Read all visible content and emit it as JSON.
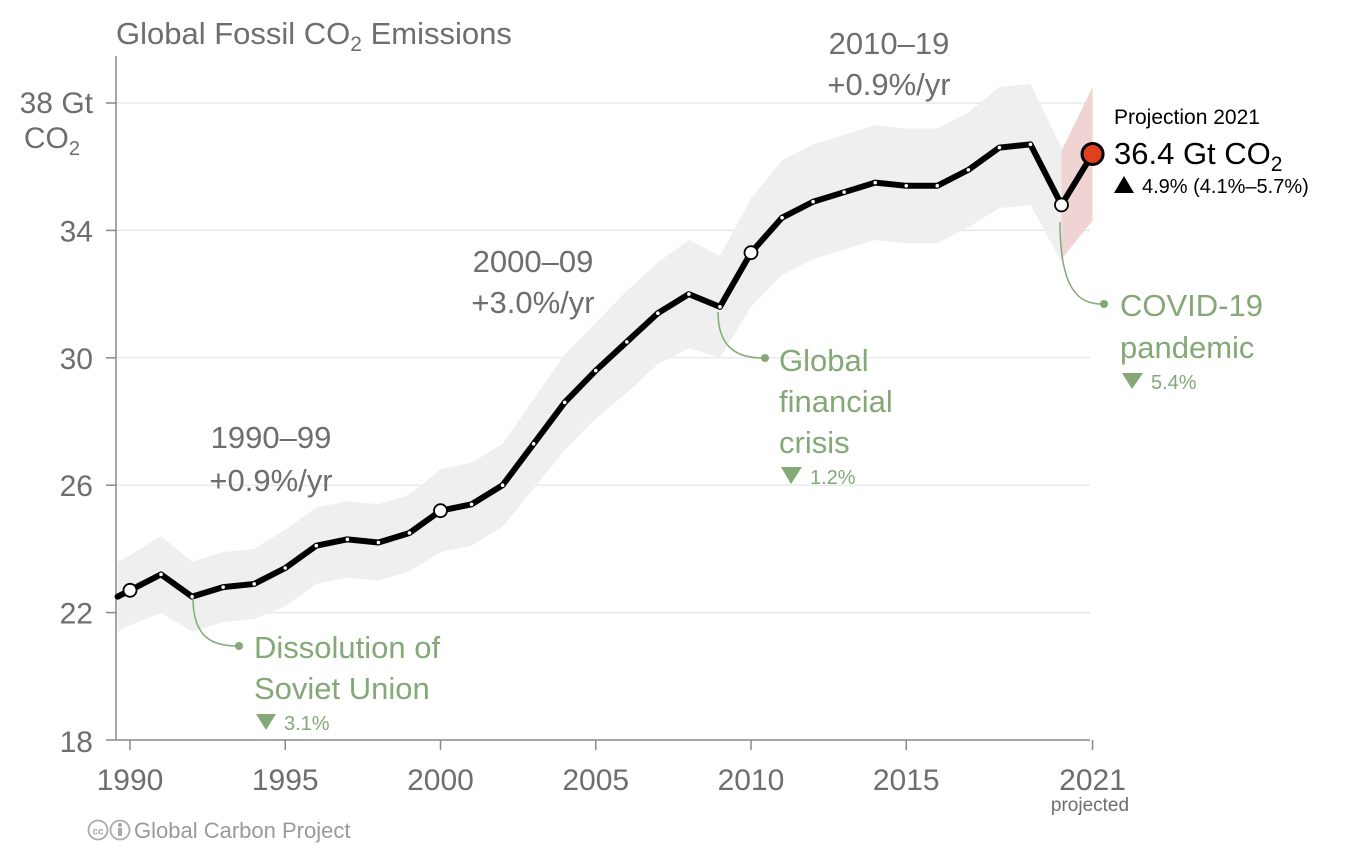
{
  "chart_data": {
    "type": "line",
    "title": "Global Fossil CO",
    "title_sub": "2",
    "title_rest": " Emissions",
    "ylabel_top": "38 Gt",
    "ylabel_unit": "CO",
    "ylabel_sub": "2",
    "yticks": [
      22,
      26,
      30,
      34
    ],
    "ylim": [
      18,
      39.4
    ],
    "xlim": [
      1989.6,
      2021
    ],
    "xticks": [
      {
        "year": 1990,
        "label": "1990"
      },
      {
        "year": 1995,
        "label": "1995"
      },
      {
        "year": 2000,
        "label": "2000"
      },
      {
        "year": 2005,
        "label": "2005"
      },
      {
        "year": 2010,
        "label": "2010"
      },
      {
        "year": 2015,
        "label": "2015"
      },
      {
        "year": 2021,
        "label": "2021"
      }
    ],
    "y_axis_bottom_label": "18",
    "projected_label": "projected",
    "series": [
      {
        "years": [
          1989.6,
          1990,
          1991,
          1992,
          1993,
          1994,
          1995,
          1996,
          1997,
          1998,
          1999,
          2000,
          2001,
          2002,
          2003,
          2004,
          2005,
          2006,
          2007,
          2008,
          2009,
          2010,
          2011,
          2012,
          2013,
          2014,
          2015,
          2016,
          2017,
          2018,
          2019,
          2020,
          2021
        ],
        "values": [
          22.5,
          22.7,
          23.2,
          22.5,
          22.8,
          22.9,
          23.4,
          24.1,
          24.3,
          24.2,
          24.5,
          25.2,
          25.4,
          26.0,
          27.3,
          28.6,
          29.6,
          30.5,
          31.4,
          32.0,
          31.6,
          33.3,
          34.4,
          34.9,
          35.2,
          35.5,
          35.4,
          35.4,
          35.9,
          36.6,
          36.7,
          34.8,
          36.4
        ],
        "band_half_width": [
          1.1,
          1.1,
          1.2,
          1.1,
          1.1,
          1.1,
          1.2,
          1.2,
          1.2,
          1.2,
          1.2,
          1.3,
          1.3,
          1.3,
          1.4,
          1.5,
          1.5,
          1.6,
          1.6,
          1.7,
          1.6,
          1.7,
          1.8,
          1.8,
          1.8,
          1.8,
          1.8,
          1.8,
          1.8,
          1.9,
          1.9,
          1.8,
          2.1
        ],
        "highlight_years": [
          1990,
          2000,
          2010,
          2020
        ]
      }
    ],
    "projection": {
      "year": 2021,
      "value": 36.4,
      "heading": "Projection 2021",
      "value_label": "36.4 Gt CO",
      "value_sub": "2",
      "change_label": "4.9% (4.1%–5.7%)",
      "range_2020": [
        33.1,
        36.5
      ],
      "range_2021": [
        34.3,
        38.5
      ],
      "band_color": "#f0d4d3",
      "marker_color": "#e0401f"
    },
    "periods": [
      {
        "line1": "1990–99",
        "line2": "+0.9%/yr"
      },
      {
        "line1": "2000–09",
        "line2": "+3.0%/yr"
      },
      {
        "line1": "2010–19",
        "line2": "+0.9%/yr"
      }
    ],
    "events": [
      {
        "lines": [
          "Dissolution of",
          "Soviet Union"
        ],
        "pct": "3.1%"
      },
      {
        "lines": [
          "Global",
          "financial",
          "crisis"
        ],
        "pct": "1.2%"
      },
      {
        "lines": [
          "COVID-19",
          "pandemic"
        ],
        "pct": "5.4%"
      }
    ],
    "colors": {
      "line": "#000000",
      "band": "#efefef",
      "grid": "#e4e4e4",
      "axis": "#888888",
      "event": "#84a877"
    }
  },
  "credit": "Global Carbon Project"
}
